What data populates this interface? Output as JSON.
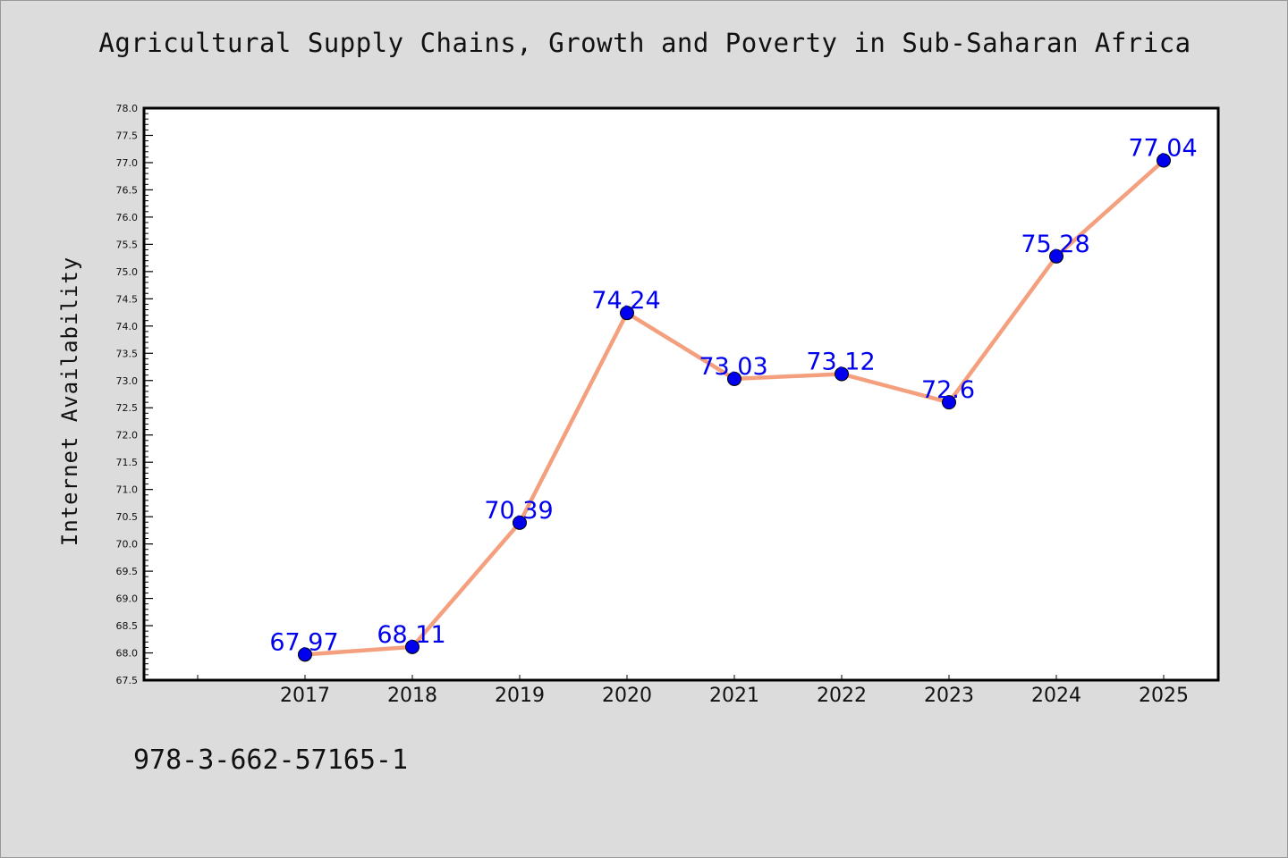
{
  "chart_data": {
    "type": "line",
    "title": "Agricultural Supply Chains, Growth and Poverty in Sub-Saharan Africa",
    "xlabel": "",
    "ylabel": "Internet Availability",
    "categories": [
      "2017",
      "2018",
      "2019",
      "2020",
      "2021",
      "2022",
      "2023",
      "2024",
      "2025"
    ],
    "series": [
      {
        "values": [
          67.97,
          68.11,
          70.39,
          74.24,
          73.03,
          73.12,
          72.6,
          75.28,
          77.04
        ],
        "labels": [
          "67.97",
          "68.11",
          "70.39",
          "74.24",
          "73.03",
          "73.12",
          "72.6",
          "75.28",
          "77.04"
        ]
      }
    ],
    "ylim": [
      67.5,
      78.0
    ],
    "yticks": [
      "67.5",
      "68.0",
      "68.5",
      "69.0",
      "69.5",
      "70.0",
      "70.5",
      "71.0",
      "71.5",
      "72.0",
      "72.5",
      "73.0",
      "73.5",
      "74.0",
      "74.5",
      "75.0",
      "75.5",
      "76.0",
      "76.5",
      "77.0",
      "77.5",
      "78.0"
    ],
    "grid": false,
    "colors": {
      "line": "#f4a07e",
      "marker": "#0000ee",
      "label": "#0000ee",
      "background": "#dcdcdc",
      "plot_background": "#ffffff"
    }
  },
  "footer": {
    "isbn": "978-3-662-57165-1"
  }
}
